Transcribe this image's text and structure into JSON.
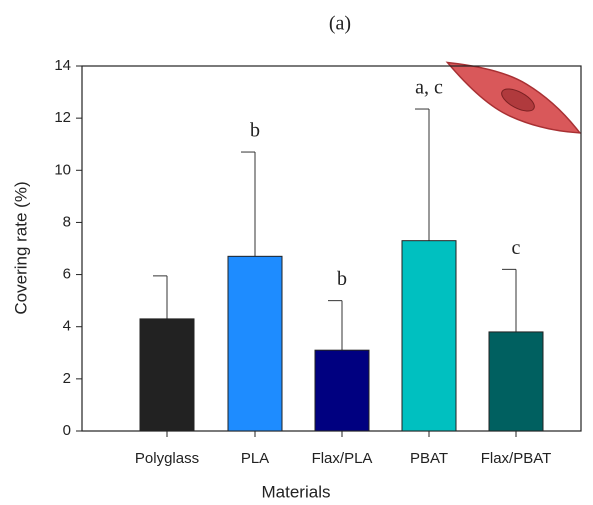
{
  "chart_data": {
    "type": "bar",
    "title": "(a)",
    "x_label": "Materials",
    "y_label": "Covering rate (%)",
    "categories": [
      "Polyglass",
      "PLA",
      "Flax/PLA",
      "PBAT",
      "Flax/PBAT"
    ],
    "values": [
      4.3,
      6.7,
      3.1,
      7.3,
      3.8
    ],
    "errors": [
      1.65,
      4.0,
      1.9,
      5.05,
      2.4
    ],
    "annotations": [
      null,
      "b",
      "b",
      "a, c",
      "c"
    ],
    "colors": [
      "#222222",
      "#1e8cff",
      "#000080",
      "#00c0c0",
      "#006060"
    ],
    "ylim": [
      0,
      14
    ],
    "yticks": [
      0,
      2,
      4,
      6,
      8,
      10,
      12,
      14
    ]
  }
}
